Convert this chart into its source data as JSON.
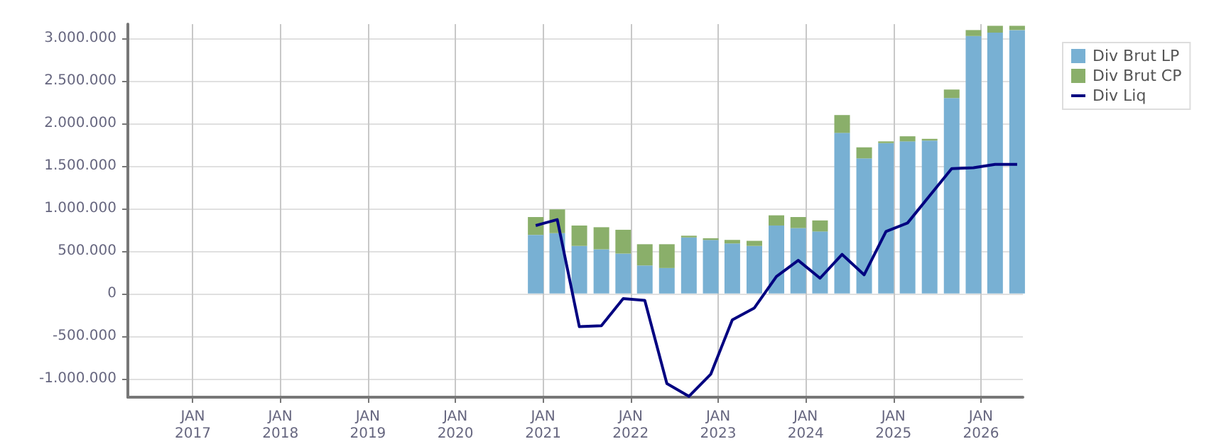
{
  "chart_data": {
    "type": "bar",
    "stacked": true,
    "x": [
      "2020-12",
      "2021-03",
      "2021-06",
      "2021-09",
      "2021-12",
      "2022-03",
      "2022-06",
      "2022-09",
      "2022-12",
      "2023-03",
      "2023-06",
      "2023-09",
      "2023-12",
      "2024-03",
      "2024-06",
      "2024-09",
      "2024-12",
      "2025-03",
      "2025-06",
      "2025-09",
      "2025-12",
      "2026-03",
      "2026-06"
    ],
    "series": [
      {
        "name": "Div Brut LP",
        "color": "#78b0d3",
        "values": [
          690000,
          710000,
          560000,
          520000,
          470000,
          330000,
          300000,
          660000,
          630000,
          590000,
          560000,
          800000,
          770000,
          730000,
          1890000,
          1590000,
          1770000,
          1790000,
          1800000,
          2300000,
          3030000,
          3070000,
          3100000
        ]
      },
      {
        "name": "Div Brut CP",
        "color": "#8aaf6a",
        "values": [
          210000,
          280000,
          240000,
          260000,
          280000,
          250000,
          280000,
          20000,
          20000,
          40000,
          60000,
          120000,
          130000,
          130000,
          210000,
          130000,
          20000,
          60000,
          20000,
          100000,
          70000,
          80000,
          50000
        ]
      },
      {
        "name": "Div Liq",
        "type": "line",
        "color": "#000080",
        "values": [
          800000,
          870000,
          -390000,
          -380000,
          -60000,
          -80000,
          -1060000,
          -1210000,
          -950000,
          -310000,
          -170000,
          200000,
          390000,
          180000,
          460000,
          220000,
          730000,
          830000,
          1150000,
          1470000,
          1480000,
          1520000,
          1520000
        ]
      }
    ],
    "xlim": [
      "2016-04-05",
      "2026-06-25"
    ],
    "xticks": [
      {
        "value": "2017-01",
        "label": "JAN\n2017"
      },
      {
        "value": "2018-01",
        "label": "JAN\n2018"
      },
      {
        "value": "2019-01",
        "label": "JAN\n2019"
      },
      {
        "value": "2020-01",
        "label": "JAN\n2020"
      },
      {
        "value": "2021-01",
        "label": "JAN\n2021"
      },
      {
        "value": "2022-01",
        "label": "JAN\n2022"
      },
      {
        "value": "2023-01",
        "label": "JAN\n2023"
      },
      {
        "value": "2024-01",
        "label": "JAN\n2024"
      },
      {
        "value": "2025-01",
        "label": "JAN\n2025"
      },
      {
        "value": "2026-01",
        "label": "JAN\n2026"
      }
    ],
    "ylim": [
      -1220000,
      3170000
    ],
    "yticks": [
      {
        "value": -1000000,
        "label": "-1.000.000"
      },
      {
        "value": -500000,
        "label": "-500.000"
      },
      {
        "value": 0,
        "label": "0"
      },
      {
        "value": 500000,
        "label": "500.000"
      },
      {
        "value": 1000000,
        "label": "1.000.000"
      },
      {
        "value": 1500000,
        "label": "1.500.000"
      },
      {
        "value": 2000000,
        "label": "2.000.000"
      },
      {
        "value": 2500000,
        "label": "2.500.000"
      },
      {
        "value": 3000000,
        "label": "3.000.000"
      }
    ],
    "grid": true,
    "legend": "top right"
  }
}
